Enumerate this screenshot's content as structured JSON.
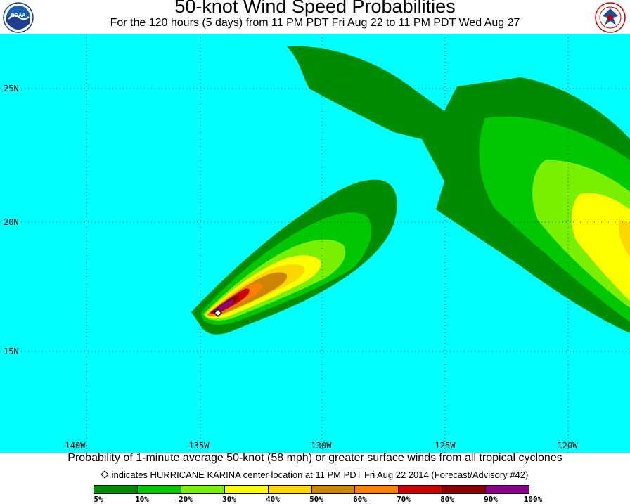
{
  "header": {
    "title": "50-knot Wind Speed Probabilities",
    "subtitle": "For the 120 hours (5 days) from 11 PM PDT Fri Aug 22 to 11 PM PDT Wed Aug 27"
  },
  "logos": {
    "left": "noaa-logo",
    "right": "national-weather-service-logo",
    "left_text": "NOAA"
  },
  "map": {
    "ocean_color": "#00FFFF",
    "lat_labels": [
      "25N",
      "20N",
      "15N"
    ],
    "lon_labels": [
      "140W",
      "135W",
      "130W",
      "125W",
      "120W"
    ],
    "storm_marker": "diamond-icon"
  },
  "caption": "Probability of 1-minute average 50-knot (58 mph) or greater surface winds from all tropical cyclones",
  "note": "indicates HURRICANE KARINA center location at 11 PM PDT Fri Aug 22 2014 (Forecast/Advisory #42)",
  "legend": {
    "colors": [
      "#008C00",
      "#00C800",
      "#78F000",
      "#FFFF00",
      "#FFD700",
      "#CD8500",
      "#FF7F00",
      "#CD0000",
      "#8B0000",
      "#8B008B"
    ],
    "labels": [
      "5%",
      "10%",
      "20%",
      "30%",
      "40%",
      "50%",
      "60%",
      "70%",
      "80%",
      "90%",
      "100%"
    ]
  }
}
